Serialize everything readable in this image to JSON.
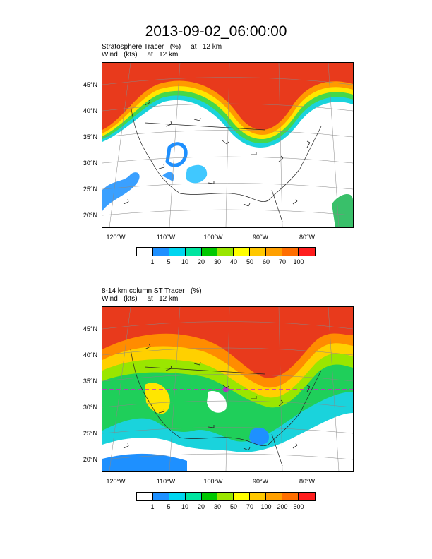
{
  "title": "2013-09-02_06:00:00",
  "panels": [
    {
      "line1": "Stratosphere Tracer   (%)     at   12 km",
      "line2": "Wind   (kts)     at   12 km",
      "lat_labels": [
        "45°N",
        "40°N",
        "35°N",
        "30°N",
        "25°N",
        "20°N"
      ],
      "lon_labels": [
        "120°W",
        "110°W",
        "100°W",
        "90°W",
        "80°W"
      ],
      "colorbar": {
        "colors": [
          "#ffffff",
          "#1e90ff",
          "#00d6f0",
          "#00e5a0",
          "#00c800",
          "#9ae600",
          "#ffff00",
          "#ffc800",
          "#ffa000",
          "#ff6e00",
          "#ff1e1e"
        ],
        "labels": [
          "1",
          "5",
          "10",
          "20",
          "30",
          "40",
          "50",
          "60",
          "70",
          "100"
        ]
      }
    },
    {
      "line1": "8-14 km column ST Tracer   (%)",
      "line2": "Wind   (kts)     at   12 km",
      "lat_labels": [
        "45°N",
        "40°N",
        "35°N",
        "30°N",
        "25°N",
        "20°N"
      ],
      "lon_labels": [
        "120°W",
        "110°W",
        "100°W",
        "90°W",
        "80°W"
      ],
      "colorbar": {
        "colors": [
          "#ffffff",
          "#1e90ff",
          "#00d6f0",
          "#00e5a0",
          "#00c800",
          "#9ae600",
          "#ffff00",
          "#ffc800",
          "#ffa000",
          "#ff6e00",
          "#ff1e1e"
        ],
        "labels": [
          "1",
          "5",
          "10",
          "20",
          "30",
          "50",
          "70",
          "100",
          "200",
          "500"
        ]
      }
    }
  ]
}
